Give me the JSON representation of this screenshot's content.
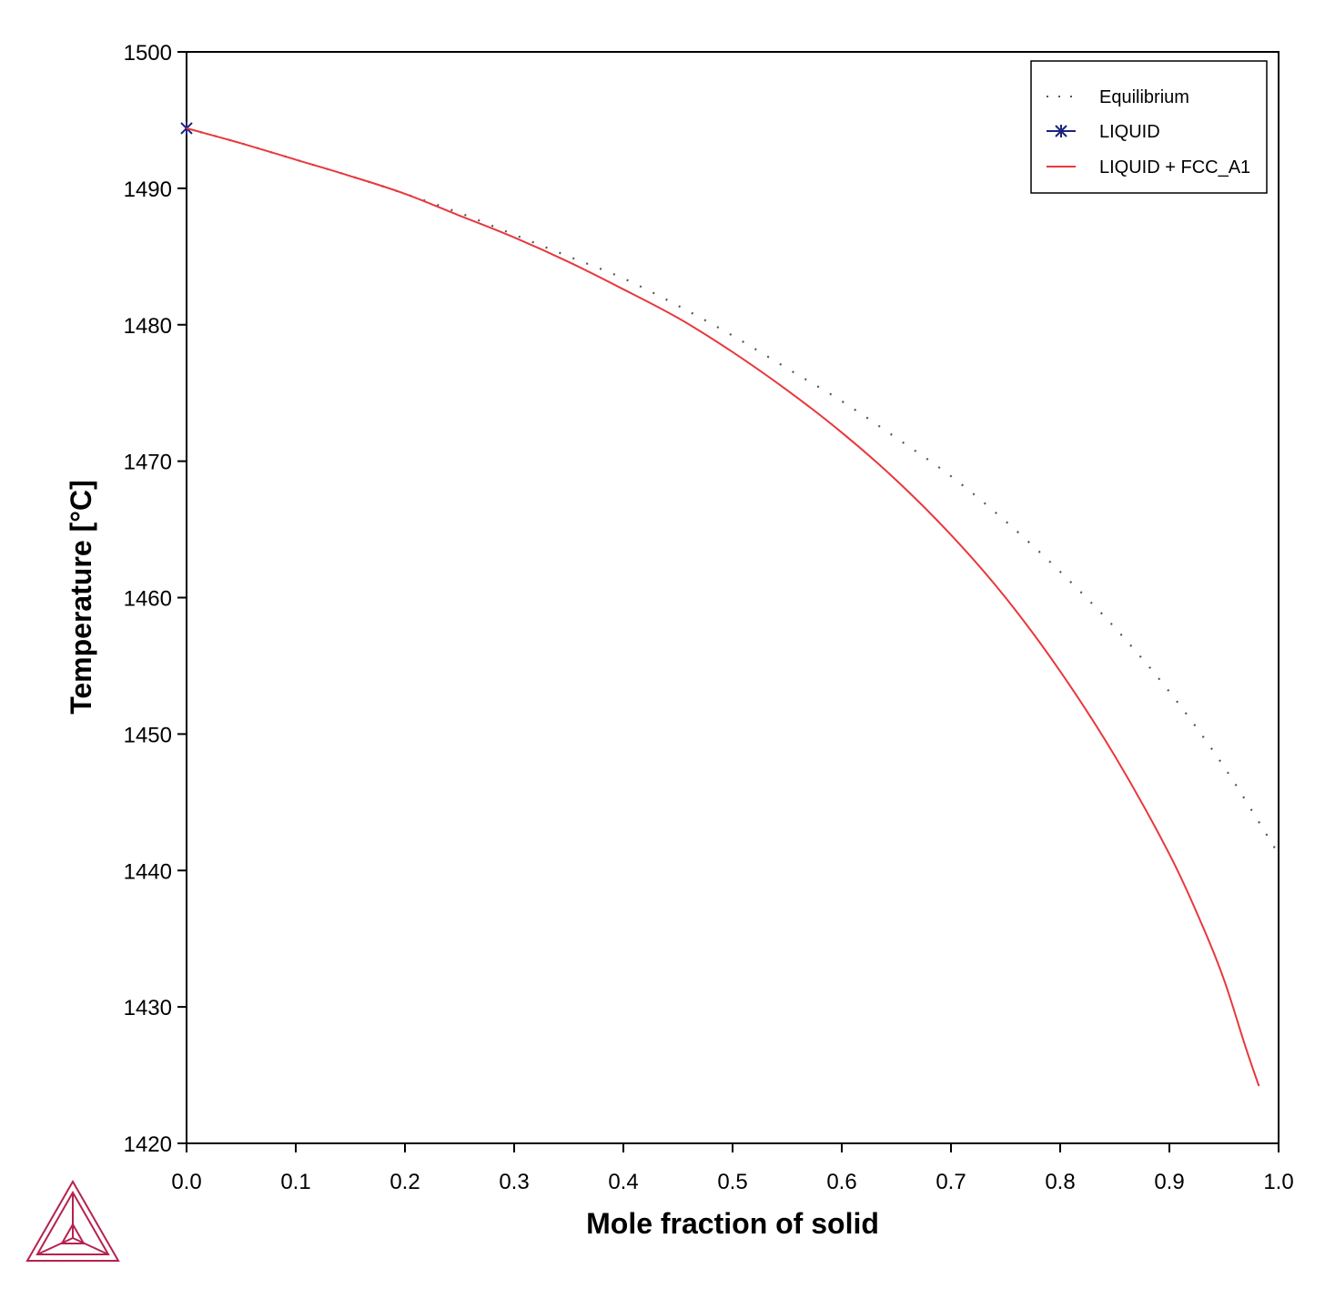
{
  "chart_data": {
    "type": "line",
    "title": "",
    "xlabel": "Mole fraction of solid",
    "ylabel": "Temperature [°C]",
    "xlim": [
      0.0,
      1.0
    ],
    "ylim": [
      1420,
      1500
    ],
    "x_ticks": [
      "0.0",
      "0.1",
      "0.2",
      "0.3",
      "0.4",
      "0.5",
      "0.6",
      "0.7",
      "0.8",
      "0.9",
      "1.0"
    ],
    "y_ticks": [
      "1420",
      "1430",
      "1440",
      "1450",
      "1460",
      "1470",
      "1480",
      "1490",
      "1500"
    ],
    "grid": false,
    "legend_position": "top-right",
    "series": [
      {
        "name": "Equilibrium",
        "style": "dotted",
        "color": "#555555",
        "points": [
          [
            0.0,
            1494.4
          ],
          [
            0.05,
            1493.3
          ],
          [
            0.1,
            1492.1
          ],
          [
            0.15,
            1490.9
          ],
          [
            0.2,
            1489.6
          ],
          [
            0.25,
            1488.2
          ],
          [
            0.3,
            1486.6
          ],
          [
            0.35,
            1485.0
          ],
          [
            0.4,
            1483.4
          ],
          [
            0.45,
            1481.4
          ],
          [
            0.5,
            1479.2
          ],
          [
            0.55,
            1476.8
          ],
          [
            0.6,
            1474.4
          ],
          [
            0.65,
            1471.7
          ],
          [
            0.7,
            1468.9
          ],
          [
            0.75,
            1465.6
          ],
          [
            0.8,
            1461.9
          ],
          [
            0.85,
            1457.8
          ],
          [
            0.9,
            1453.1
          ],
          [
            0.95,
            1447.6
          ],
          [
            1.0,
            1441.2
          ]
        ]
      },
      {
        "name": "LIQUID",
        "style": "marker",
        "color": "#1a237e",
        "points": [
          [
            0.0,
            1494.4
          ]
        ]
      },
      {
        "name": "LIQUID + FCC_A1",
        "style": "solid",
        "color": "#e8383d",
        "points": [
          [
            0.0,
            1494.4
          ],
          [
            0.05,
            1493.3
          ],
          [
            0.1,
            1492.1
          ],
          [
            0.15,
            1490.9
          ],
          [
            0.2,
            1489.6
          ],
          [
            0.25,
            1488.0
          ],
          [
            0.3,
            1486.4
          ],
          [
            0.35,
            1484.6
          ],
          [
            0.4,
            1482.6
          ],
          [
            0.45,
            1480.5
          ],
          [
            0.5,
            1478.0
          ],
          [
            0.55,
            1475.2
          ],
          [
            0.6,
            1472.1
          ],
          [
            0.65,
            1468.6
          ],
          [
            0.7,
            1464.6
          ],
          [
            0.75,
            1460.0
          ],
          [
            0.8,
            1454.6
          ],
          [
            0.85,
            1448.4
          ],
          [
            0.9,
            1441.2
          ],
          [
            0.93,
            1436.0
          ],
          [
            0.95,
            1432.0
          ],
          [
            0.97,
            1427.0
          ],
          [
            0.982,
            1424.2
          ]
        ]
      }
    ]
  }
}
